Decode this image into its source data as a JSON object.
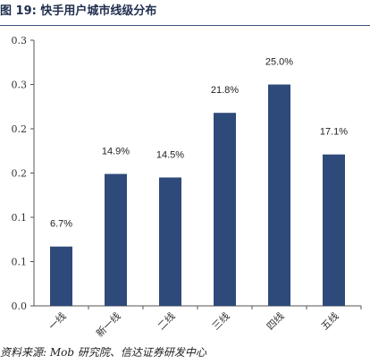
{
  "header": {
    "title": "图 19:  快手用户城市线级分布"
  },
  "footer": {
    "source": "资料来源:  Mob 研究院、信达证券研发中心"
  },
  "chart_data": {
    "type": "bar",
    "title": "快手用户城市线级分布",
    "categories": [
      "一线",
      "新一线",
      "二线",
      "三线",
      "四线",
      "五线"
    ],
    "values": [
      0.067,
      0.149,
      0.145,
      0.218,
      0.25,
      0.171
    ],
    "value_labels": [
      "6.7%",
      "14.9%",
      "14.5%",
      "21.8%",
      "25.0%",
      "17.1%"
    ],
    "ylim": [
      0,
      0.3
    ],
    "yticks": [
      0.0,
      0.05,
      0.1,
      0.15,
      0.2,
      0.25,
      0.3
    ],
    "ytick_labels": [
      "0.0",
      "0.1",
      "0.1",
      "0.2",
      "0.2",
      "0.3",
      "0.3"
    ],
    "grid": false,
    "legend": "none",
    "bar_color": "#2e4a7a"
  }
}
